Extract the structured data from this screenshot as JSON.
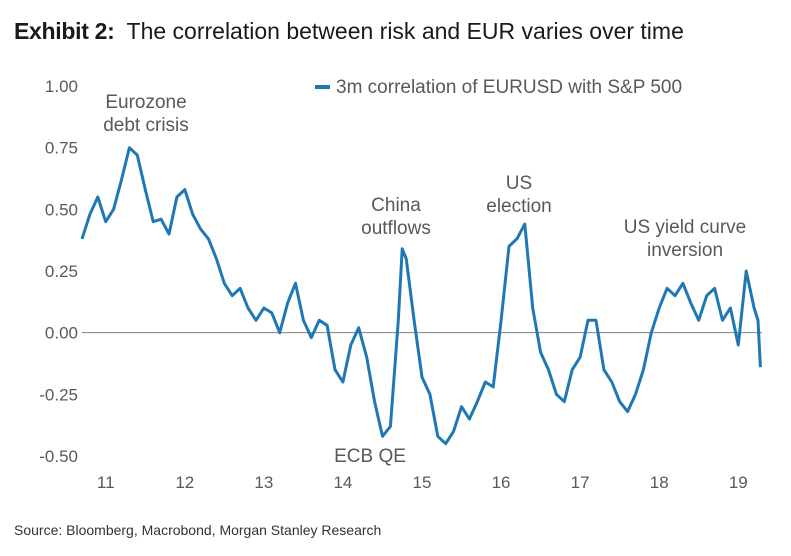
{
  "title": {
    "label": "Exhibit 2:",
    "text": "The correlation between risk and EUR varies over time"
  },
  "source": "Source: Bloomberg, Macrobond, Morgan Stanley Research",
  "chart_data": {
    "type": "line",
    "title": "The correlation between risk and EUR varies over time",
    "xlabel": "",
    "ylabel": "",
    "ylim": [
      -0.5,
      1.0
    ],
    "xlim": [
      2010.7,
      2019.3
    ],
    "yticks": [
      "1.00",
      "0.75",
      "0.50",
      "0.25",
      "0.00",
      "-0.25",
      "-0.50"
    ],
    "ytick_values": [
      1.0,
      0.75,
      0.5,
      0.25,
      0.0,
      -0.25,
      -0.5
    ],
    "xticks": [
      "11",
      "12",
      "13",
      "14",
      "15",
      "16",
      "17",
      "18",
      "19"
    ],
    "xtick_values": [
      2011,
      2012,
      2013,
      2014,
      2015,
      2016,
      2017,
      2018,
      2019
    ],
    "grid": false,
    "zero_line": true,
    "legend_position": "top-right",
    "series": [
      {
        "name": "3m correlation of EURUSD with S&P 500",
        "color": "#1f78b4",
        "x": [
          2010.7,
          2010.8,
          2010.9,
          2011.0,
          2011.1,
          2011.2,
          2011.3,
          2011.4,
          2011.5,
          2011.6,
          2011.7,
          2011.8,
          2011.9,
          2012.0,
          2012.1,
          2012.2,
          2012.3,
          2012.4,
          2012.5,
          2012.6,
          2012.7,
          2012.8,
          2012.9,
          2013.0,
          2013.1,
          2013.2,
          2013.3,
          2013.4,
          2013.5,
          2013.6,
          2013.7,
          2013.8,
          2013.9,
          2014.0,
          2014.1,
          2014.2,
          2014.3,
          2014.4,
          2014.5,
          2014.6,
          2014.7,
          2014.75,
          2014.8,
          2014.9,
          2015.0,
          2015.1,
          2015.2,
          2015.3,
          2015.4,
          2015.5,
          2015.6,
          2015.7,
          2015.8,
          2015.9,
          2016.0,
          2016.1,
          2016.2,
          2016.3,
          2016.4,
          2016.5,
          2016.6,
          2016.7,
          2016.8,
          2016.9,
          2017.0,
          2017.1,
          2017.2,
          2017.3,
          2017.4,
          2017.5,
          2017.6,
          2017.7,
          2017.8,
          2017.9,
          2018.0,
          2018.1,
          2018.2,
          2018.3,
          2018.4,
          2018.5,
          2018.6,
          2018.7,
          2018.8,
          2018.9,
          2019.0,
          2019.1,
          2019.2,
          2019.25,
          2019.28
        ],
        "values": [
          0.38,
          0.48,
          0.55,
          0.45,
          0.5,
          0.62,
          0.75,
          0.72,
          0.58,
          0.45,
          0.46,
          0.4,
          0.55,
          0.58,
          0.48,
          0.42,
          0.38,
          0.3,
          0.2,
          0.15,
          0.18,
          0.1,
          0.05,
          0.1,
          0.08,
          0.0,
          0.12,
          0.2,
          0.05,
          -0.02,
          0.05,
          0.03,
          -0.15,
          -0.2,
          -0.05,
          0.02,
          -0.1,
          -0.28,
          -0.42,
          -0.38,
          0.05,
          0.34,
          0.3,
          0.05,
          -0.18,
          -0.25,
          -0.42,
          -0.45,
          -0.4,
          -0.3,
          -0.35,
          -0.28,
          -0.2,
          -0.22,
          0.05,
          0.35,
          0.38,
          0.44,
          0.1,
          -0.08,
          -0.15,
          -0.25,
          -0.28,
          -0.15,
          -0.1,
          0.05,
          0.05,
          -0.15,
          -0.2,
          -0.28,
          -0.32,
          -0.25,
          -0.15,
          0.0,
          0.1,
          0.18,
          0.15,
          0.2,
          0.12,
          0.05,
          0.15,
          0.18,
          0.05,
          0.1,
          -0.05,
          0.25,
          0.1,
          0.05,
          -0.14
        ]
      }
    ],
    "annotations": [
      {
        "lines": [
          "Eurozone",
          "debt crisis"
        ]
      },
      {
        "lines": [
          "China",
          "outflows"
        ]
      },
      {
        "lines": [
          "US",
          "election"
        ]
      },
      {
        "lines": [
          "US yield curve",
          "inversion"
        ]
      },
      {
        "lines": [
          "ECB QE"
        ]
      }
    ]
  }
}
